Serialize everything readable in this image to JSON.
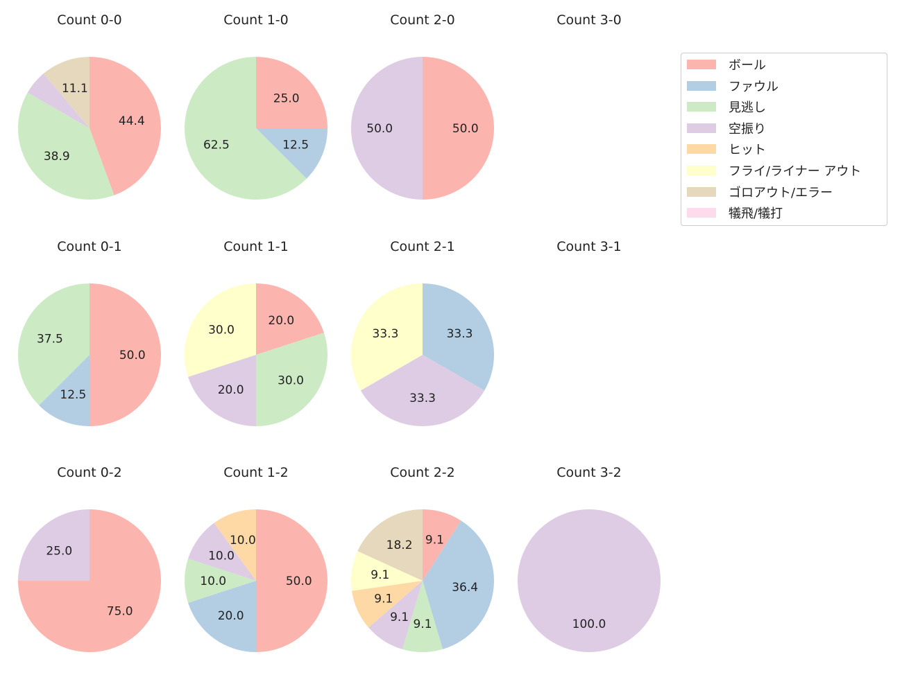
{
  "chart_data": {
    "type": "pie",
    "categories": [
      "ボール",
      "ファウル",
      "見逃し",
      "空振り",
      "ヒット",
      "フライ/ライナー アウト",
      "ゴロアウト/エラー",
      "犠飛/犠打"
    ],
    "colors": [
      "#fbb4ae",
      "#b3cde3",
      "#ccebc5",
      "#decbe4",
      "#fed9a6",
      "#ffffcc",
      "#e5d8bd",
      "#fddaec"
    ],
    "legend_position": "right",
    "start_angle": 90,
    "direction": "clockwise",
    "pies": [
      {
        "title": "Count 0-0",
        "values": [
          44.4,
          0,
          38.9,
          5.6,
          0,
          0,
          11.1,
          0
        ],
        "labels": [
          "44.4",
          "",
          "38.9",
          "",
          "",
          "",
          "11.1",
          ""
        ]
      },
      {
        "title": "Count 1-0",
        "values": [
          25.0,
          12.5,
          62.5,
          0,
          0,
          0,
          0,
          0
        ],
        "labels": [
          "25.0",
          "12.5",
          "62.5",
          "",
          "",
          "",
          "",
          ""
        ]
      },
      {
        "title": "Count 2-0",
        "values": [
          50.0,
          0,
          0,
          50.0,
          0,
          0,
          0,
          0
        ],
        "labels": [
          "50.0",
          "",
          "",
          "50.0",
          "",
          "",
          "",
          ""
        ]
      },
      {
        "title": "Count 3-0",
        "values": [],
        "labels": []
      },
      {
        "title": "Count 0-1",
        "values": [
          50.0,
          12.5,
          37.5,
          0,
          0,
          0,
          0,
          0
        ],
        "labels": [
          "50.0",
          "12.5",
          "37.5",
          "",
          "",
          "",
          "",
          ""
        ]
      },
      {
        "title": "Count 1-1",
        "values": [
          20.0,
          0,
          30.0,
          20.0,
          0,
          30.0,
          0,
          0
        ],
        "labels": [
          "20.0",
          "",
          "30.0",
          "20.0",
          "",
          "30.0",
          "",
          ""
        ]
      },
      {
        "title": "Count 2-1",
        "values": [
          0,
          33.3,
          0,
          33.3,
          0,
          33.3,
          0,
          0
        ],
        "labels": [
          "",
          "33.3",
          "",
          "33.3",
          "",
          "33.3",
          "",
          ""
        ]
      },
      {
        "title": "Count 3-1",
        "values": [],
        "labels": []
      },
      {
        "title": "Count 0-2",
        "values": [
          75.0,
          0,
          0,
          25.0,
          0,
          0,
          0,
          0
        ],
        "labels": [
          "75.0",
          "",
          "",
          "25.0",
          "",
          "",
          "",
          ""
        ]
      },
      {
        "title": "Count 1-2",
        "values": [
          50.0,
          20.0,
          10.0,
          10.0,
          10.0,
          0,
          0,
          0
        ],
        "labels": [
          "50.0",
          "20.0",
          "10.0",
          "10.0",
          "10.0",
          "",
          "",
          ""
        ]
      },
      {
        "title": "Count 2-2",
        "values": [
          9.1,
          36.4,
          9.1,
          9.1,
          9.1,
          9.1,
          18.2,
          0
        ],
        "labels": [
          "9.1",
          "36.4",
          "9.1",
          "9.1",
          "9.1",
          "9.1",
          "18.2",
          ""
        ]
      },
      {
        "title": "Count 3-2",
        "values": [
          0,
          0,
          0,
          100.0,
          0,
          0,
          0,
          0
        ],
        "labels": [
          "",
          "",
          "",
          "100.0",
          "",
          "",
          "",
          ""
        ]
      }
    ]
  }
}
